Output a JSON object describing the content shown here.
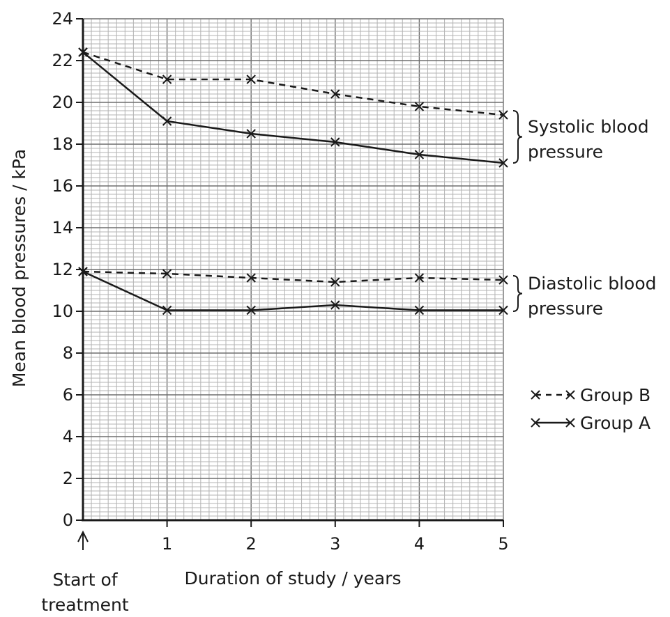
{
  "chart_data": {
    "type": "line",
    "xlabel": "Duration of study / years",
    "ylabel": "Mean blood pressures / kPa",
    "xlim": [
      0,
      5
    ],
    "ylim": [
      0,
      24
    ],
    "x_ticks": [
      "1",
      "2",
      "3",
      "4",
      "5"
    ],
    "y_ticks": [
      "0",
      "2",
      "4",
      "6",
      "8",
      "10",
      "12",
      "14",
      "16",
      "18",
      "20",
      "22",
      "24"
    ],
    "grid": true,
    "start_annotation": "Start of treatment",
    "start_annotation_lines": [
      "Start of",
      "treatment"
    ],
    "x": [
      0,
      1,
      2,
      3,
      4,
      5
    ],
    "series": [
      {
        "name": "Group B",
        "group": "Systolic blood pressure",
        "style": "dashed",
        "values": [
          22.4,
          21.1,
          21.1,
          20.4,
          19.8,
          19.4
        ]
      },
      {
        "name": "Group A",
        "group": "Systolic blood pressure",
        "style": "solid",
        "values": [
          22.4,
          19.1,
          18.5,
          18.1,
          17.5,
          17.1
        ]
      },
      {
        "name": "Group B",
        "group": "Diastolic blood pressure",
        "style": "dashed",
        "values": [
          11.9,
          11.8,
          11.6,
          11.4,
          11.6,
          11.5
        ]
      },
      {
        "name": "Group A",
        "group": "Diastolic blood pressure",
        "style": "solid",
        "values": [
          11.9,
          10.05,
          10.05,
          10.3,
          10.05,
          10.05
        ]
      }
    ],
    "brackets": [
      {
        "label_lines": [
          "Systolic blood",
          "pressure"
        ],
        "range": [
          17.1,
          19.6
        ]
      },
      {
        "label_lines": [
          "Diastolic blood",
          "pressure"
        ],
        "range": [
          10.0,
          11.7
        ]
      }
    ],
    "legend": [
      {
        "label": "Group B",
        "style": "dashed"
      },
      {
        "label": "Group A",
        "style": "solid"
      }
    ],
    "legend_position": "right"
  }
}
